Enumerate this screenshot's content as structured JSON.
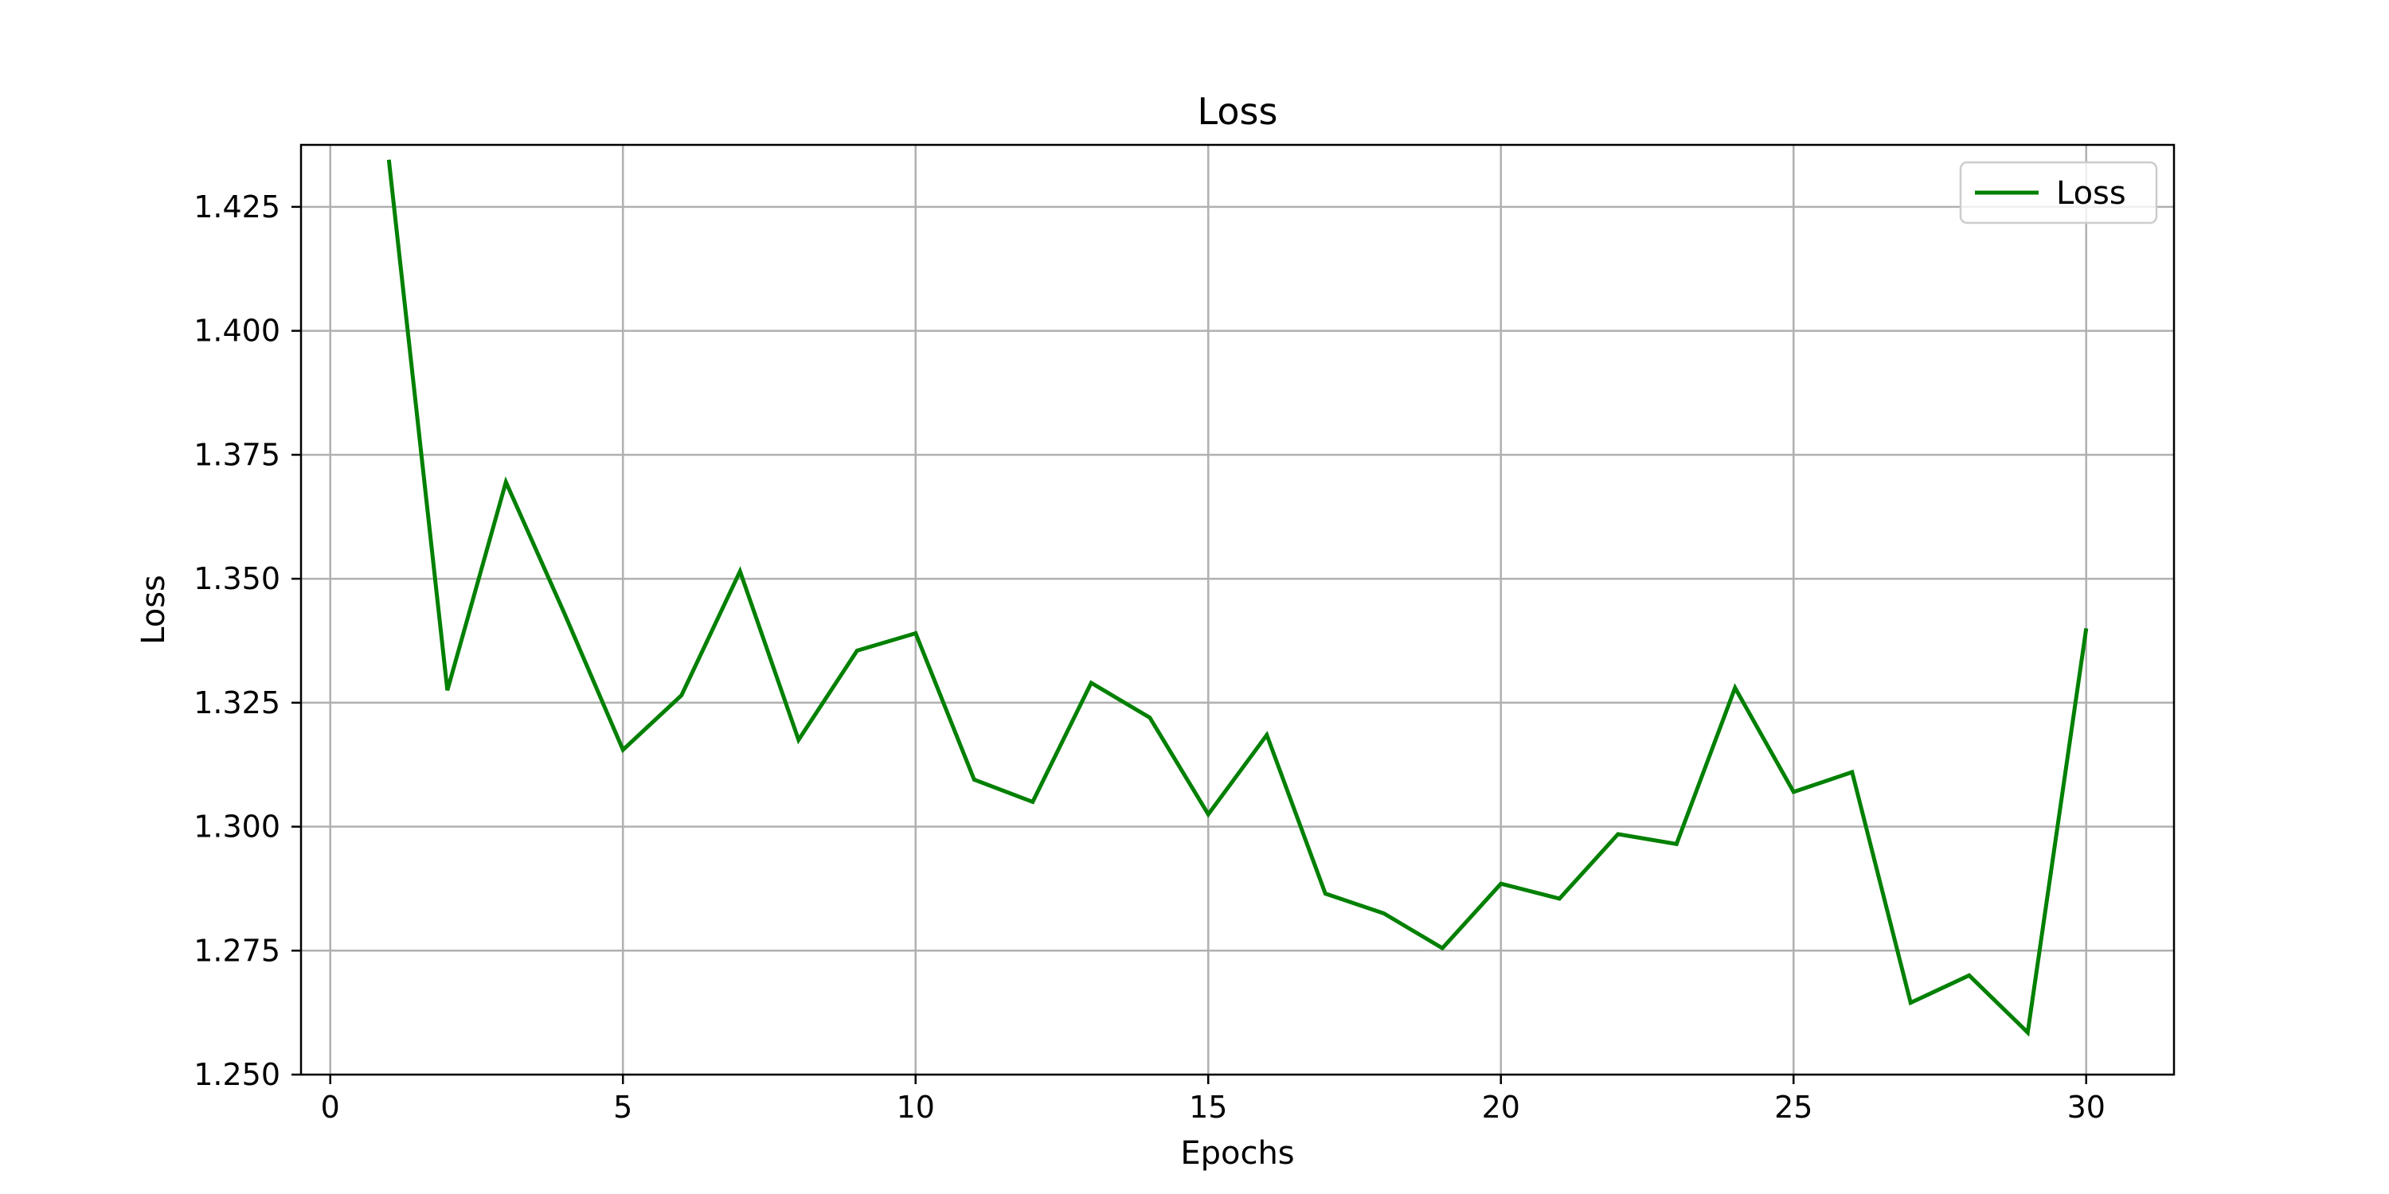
{
  "chart_data": {
    "type": "line",
    "title": "Loss",
    "xlabel": "Epochs",
    "ylabel": "Loss",
    "xlim": [
      -0.5,
      31.5
    ],
    "ylim": [
      1.25,
      1.4375
    ],
    "xticks": [
      0,
      5,
      10,
      15,
      20,
      25,
      30
    ],
    "yticks": [
      1.25,
      1.275,
      1.3,
      1.325,
      1.35,
      1.375,
      1.4,
      1.425
    ],
    "ytick_labels": [
      "1.250",
      "1.275",
      "1.300",
      "1.325",
      "1.350",
      "1.375",
      "1.400",
      "1.425"
    ],
    "grid": true,
    "legend": "upper right",
    "series": [
      {
        "name": "Loss",
        "color": "#008000",
        "x": [
          1,
          2,
          3,
          4,
          5,
          6,
          7,
          8,
          9,
          10,
          11,
          12,
          13,
          14,
          15,
          16,
          17,
          18,
          19,
          20,
          21,
          22,
          23,
          24,
          25,
          26,
          27,
          28,
          29,
          30
        ],
        "y": [
          1.4345,
          1.3275,
          1.3695,
          1.343,
          1.3155,
          1.3265,
          1.3515,
          1.3175,
          1.3355,
          1.339,
          1.3095,
          1.305,
          1.329,
          1.322,
          1.3025,
          1.3185,
          1.2865,
          1.2825,
          1.2755,
          1.2885,
          1.2855,
          1.2985,
          1.2965,
          1.328,
          1.307,
          1.311,
          1.2645,
          1.27,
          1.2585,
          1.34
        ]
      }
    ]
  }
}
